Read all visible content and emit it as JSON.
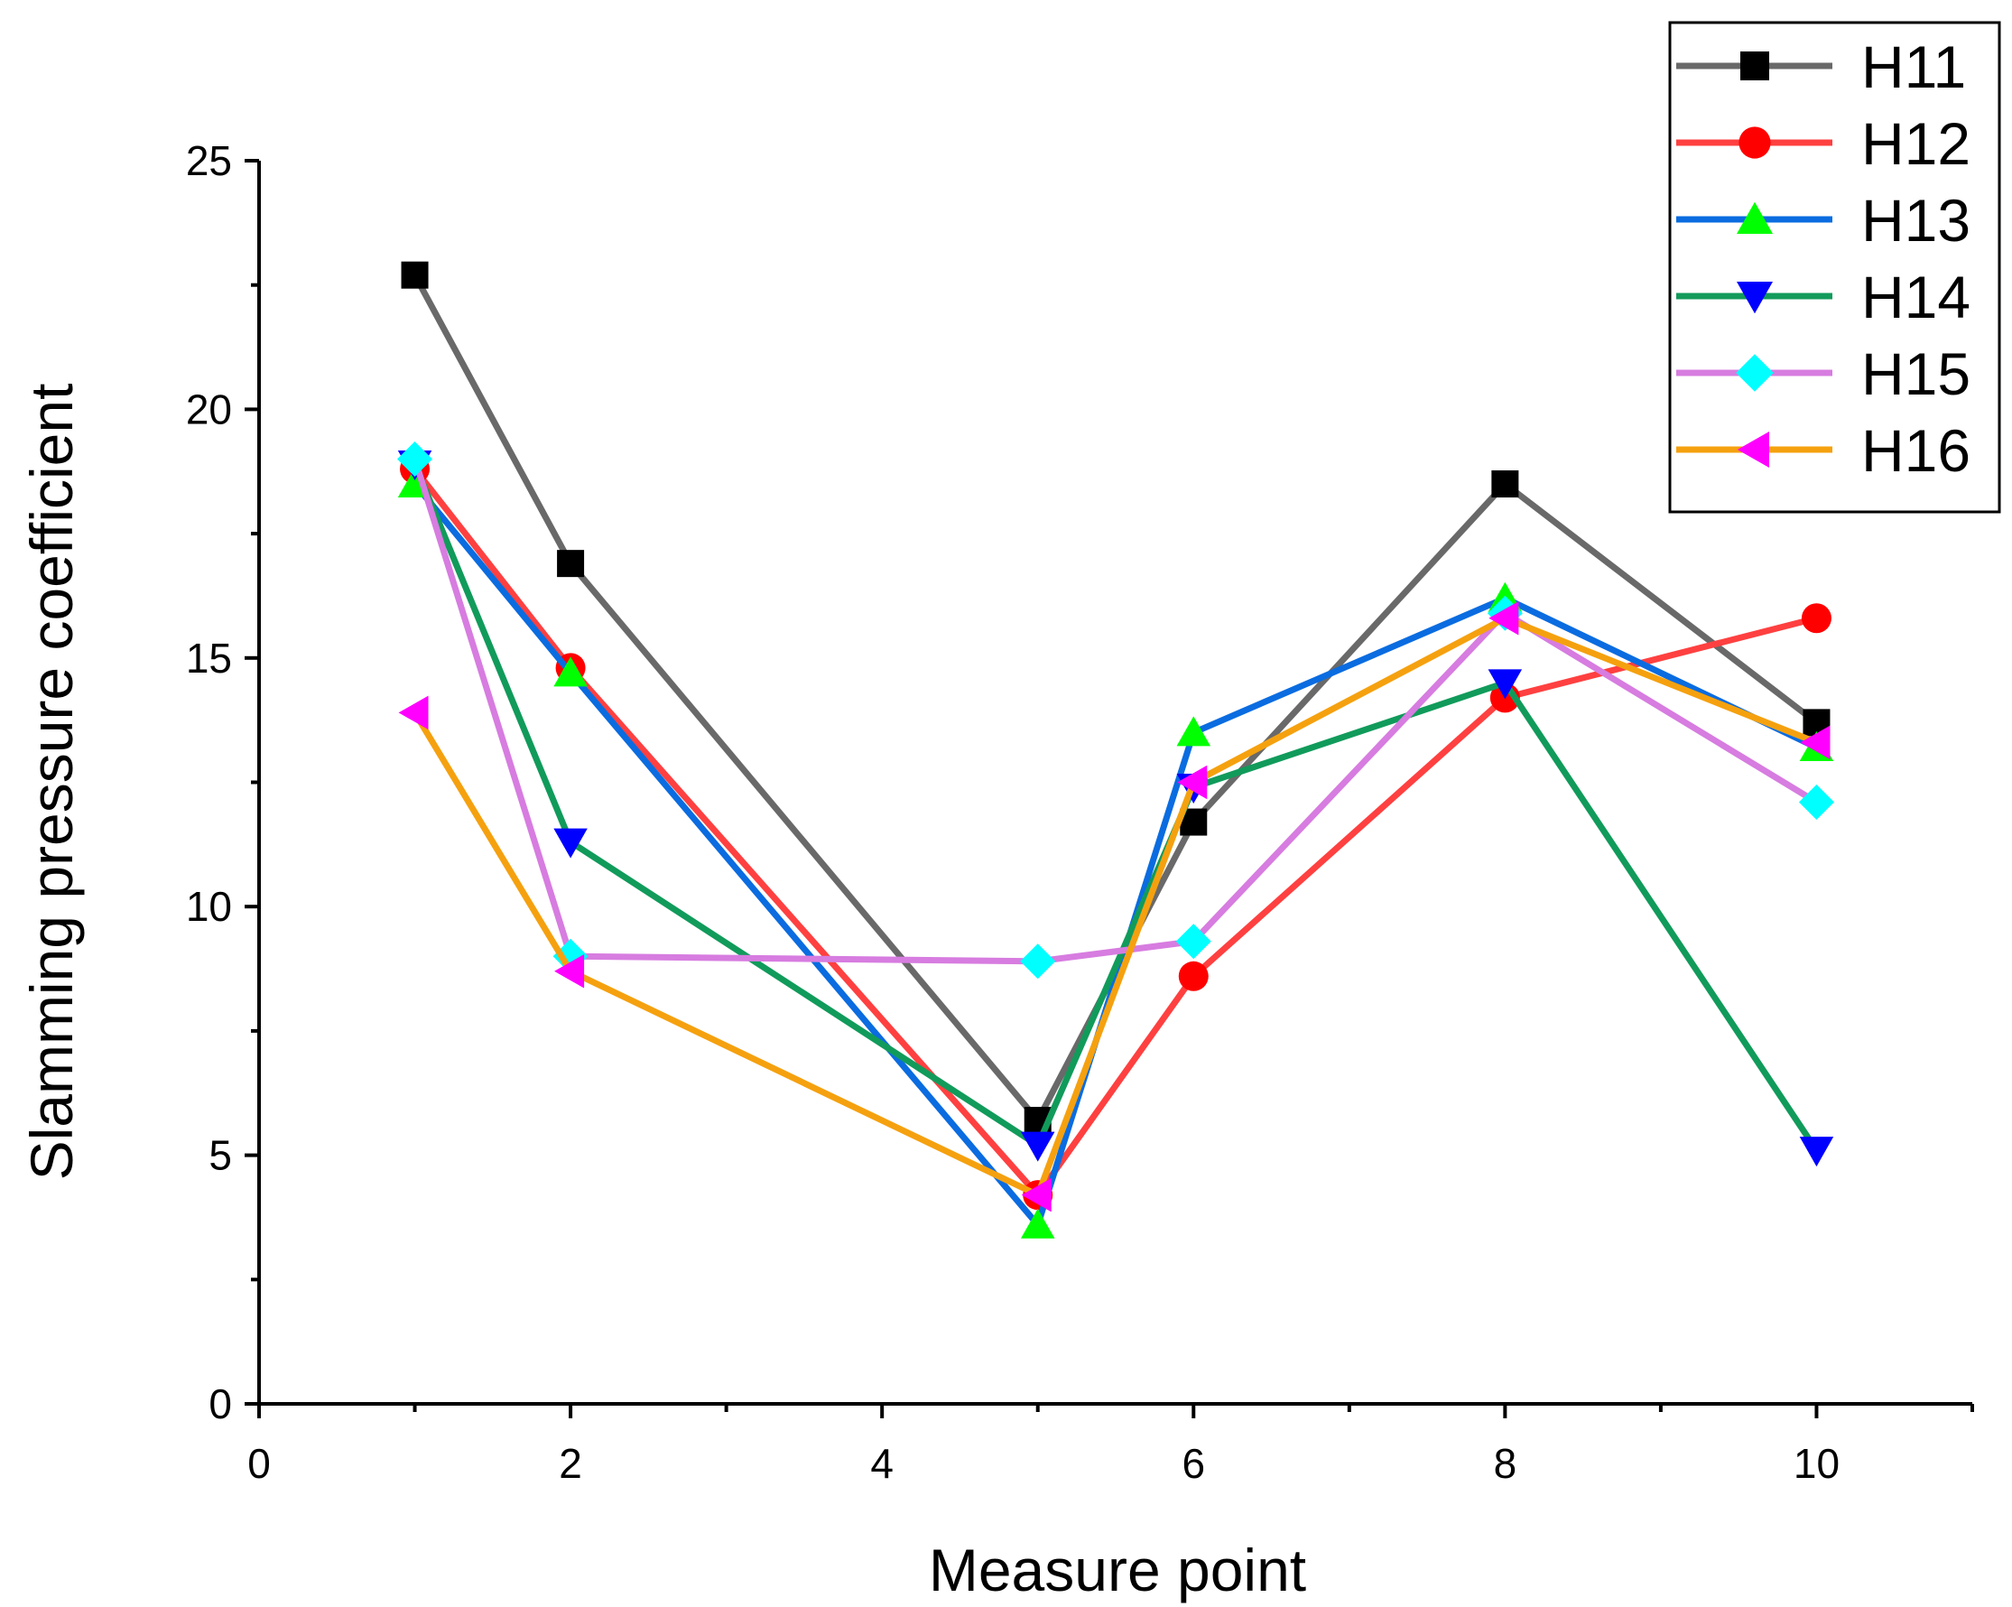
{
  "chart_data": {
    "type": "line",
    "title": "",
    "xlabel": "Measure point",
    "ylabel": "Slamming pressure coefficient",
    "xlim": [
      0,
      11
    ],
    "ylim": [
      0,
      25
    ],
    "xticks": [
      0,
      2,
      4,
      6,
      8,
      10
    ],
    "xticks_minor": [
      1,
      3,
      5,
      7,
      9,
      11
    ],
    "yticks": [
      0,
      5,
      10,
      15,
      20,
      25
    ],
    "yticks_minor": [
      2.5,
      7.5,
      12.5,
      17.5,
      22.5
    ],
    "x": [
      1,
      2,
      5,
      6,
      8,
      10
    ],
    "legend_position": "top-right",
    "series": [
      {
        "name": "H11",
        "color": "#696969",
        "marker_color": "#000000",
        "marker": "square",
        "values": [
          22.7,
          16.9,
          5.7,
          11.7,
          18.5,
          13.7
        ]
      },
      {
        "name": "H12",
        "color": "#ff4040",
        "marker_color": "#ff0000",
        "marker": "circle",
        "values": [
          18.8,
          14.8,
          4.2,
          8.6,
          14.2,
          15.8
        ]
      },
      {
        "name": "H13",
        "color": "#0a6ce0",
        "marker_color": "#00ff00",
        "marker": "triangle-up",
        "values": [
          18.5,
          14.7,
          3.6,
          13.5,
          16.2,
          13.2
        ]
      },
      {
        "name": "H14",
        "color": "#119b5b",
        "marker_color": "#0000ff",
        "marker": "triangle-down",
        "values": [
          18.9,
          11.3,
          5.2,
          12.4,
          14.5,
          5.1
        ]
      },
      {
        "name": "H15",
        "color": "#d77ce0",
        "marker_color": "#00ffff",
        "marker": "diamond",
        "values": [
          19.0,
          9.0,
          8.9,
          9.3,
          15.9,
          12.1
        ]
      },
      {
        "name": "H16",
        "color": "#f5a10f",
        "marker_color": "#ff00ff",
        "marker": "triangle-left",
        "values": [
          13.9,
          8.7,
          4.2,
          12.5,
          15.8,
          13.3
        ]
      }
    ]
  }
}
